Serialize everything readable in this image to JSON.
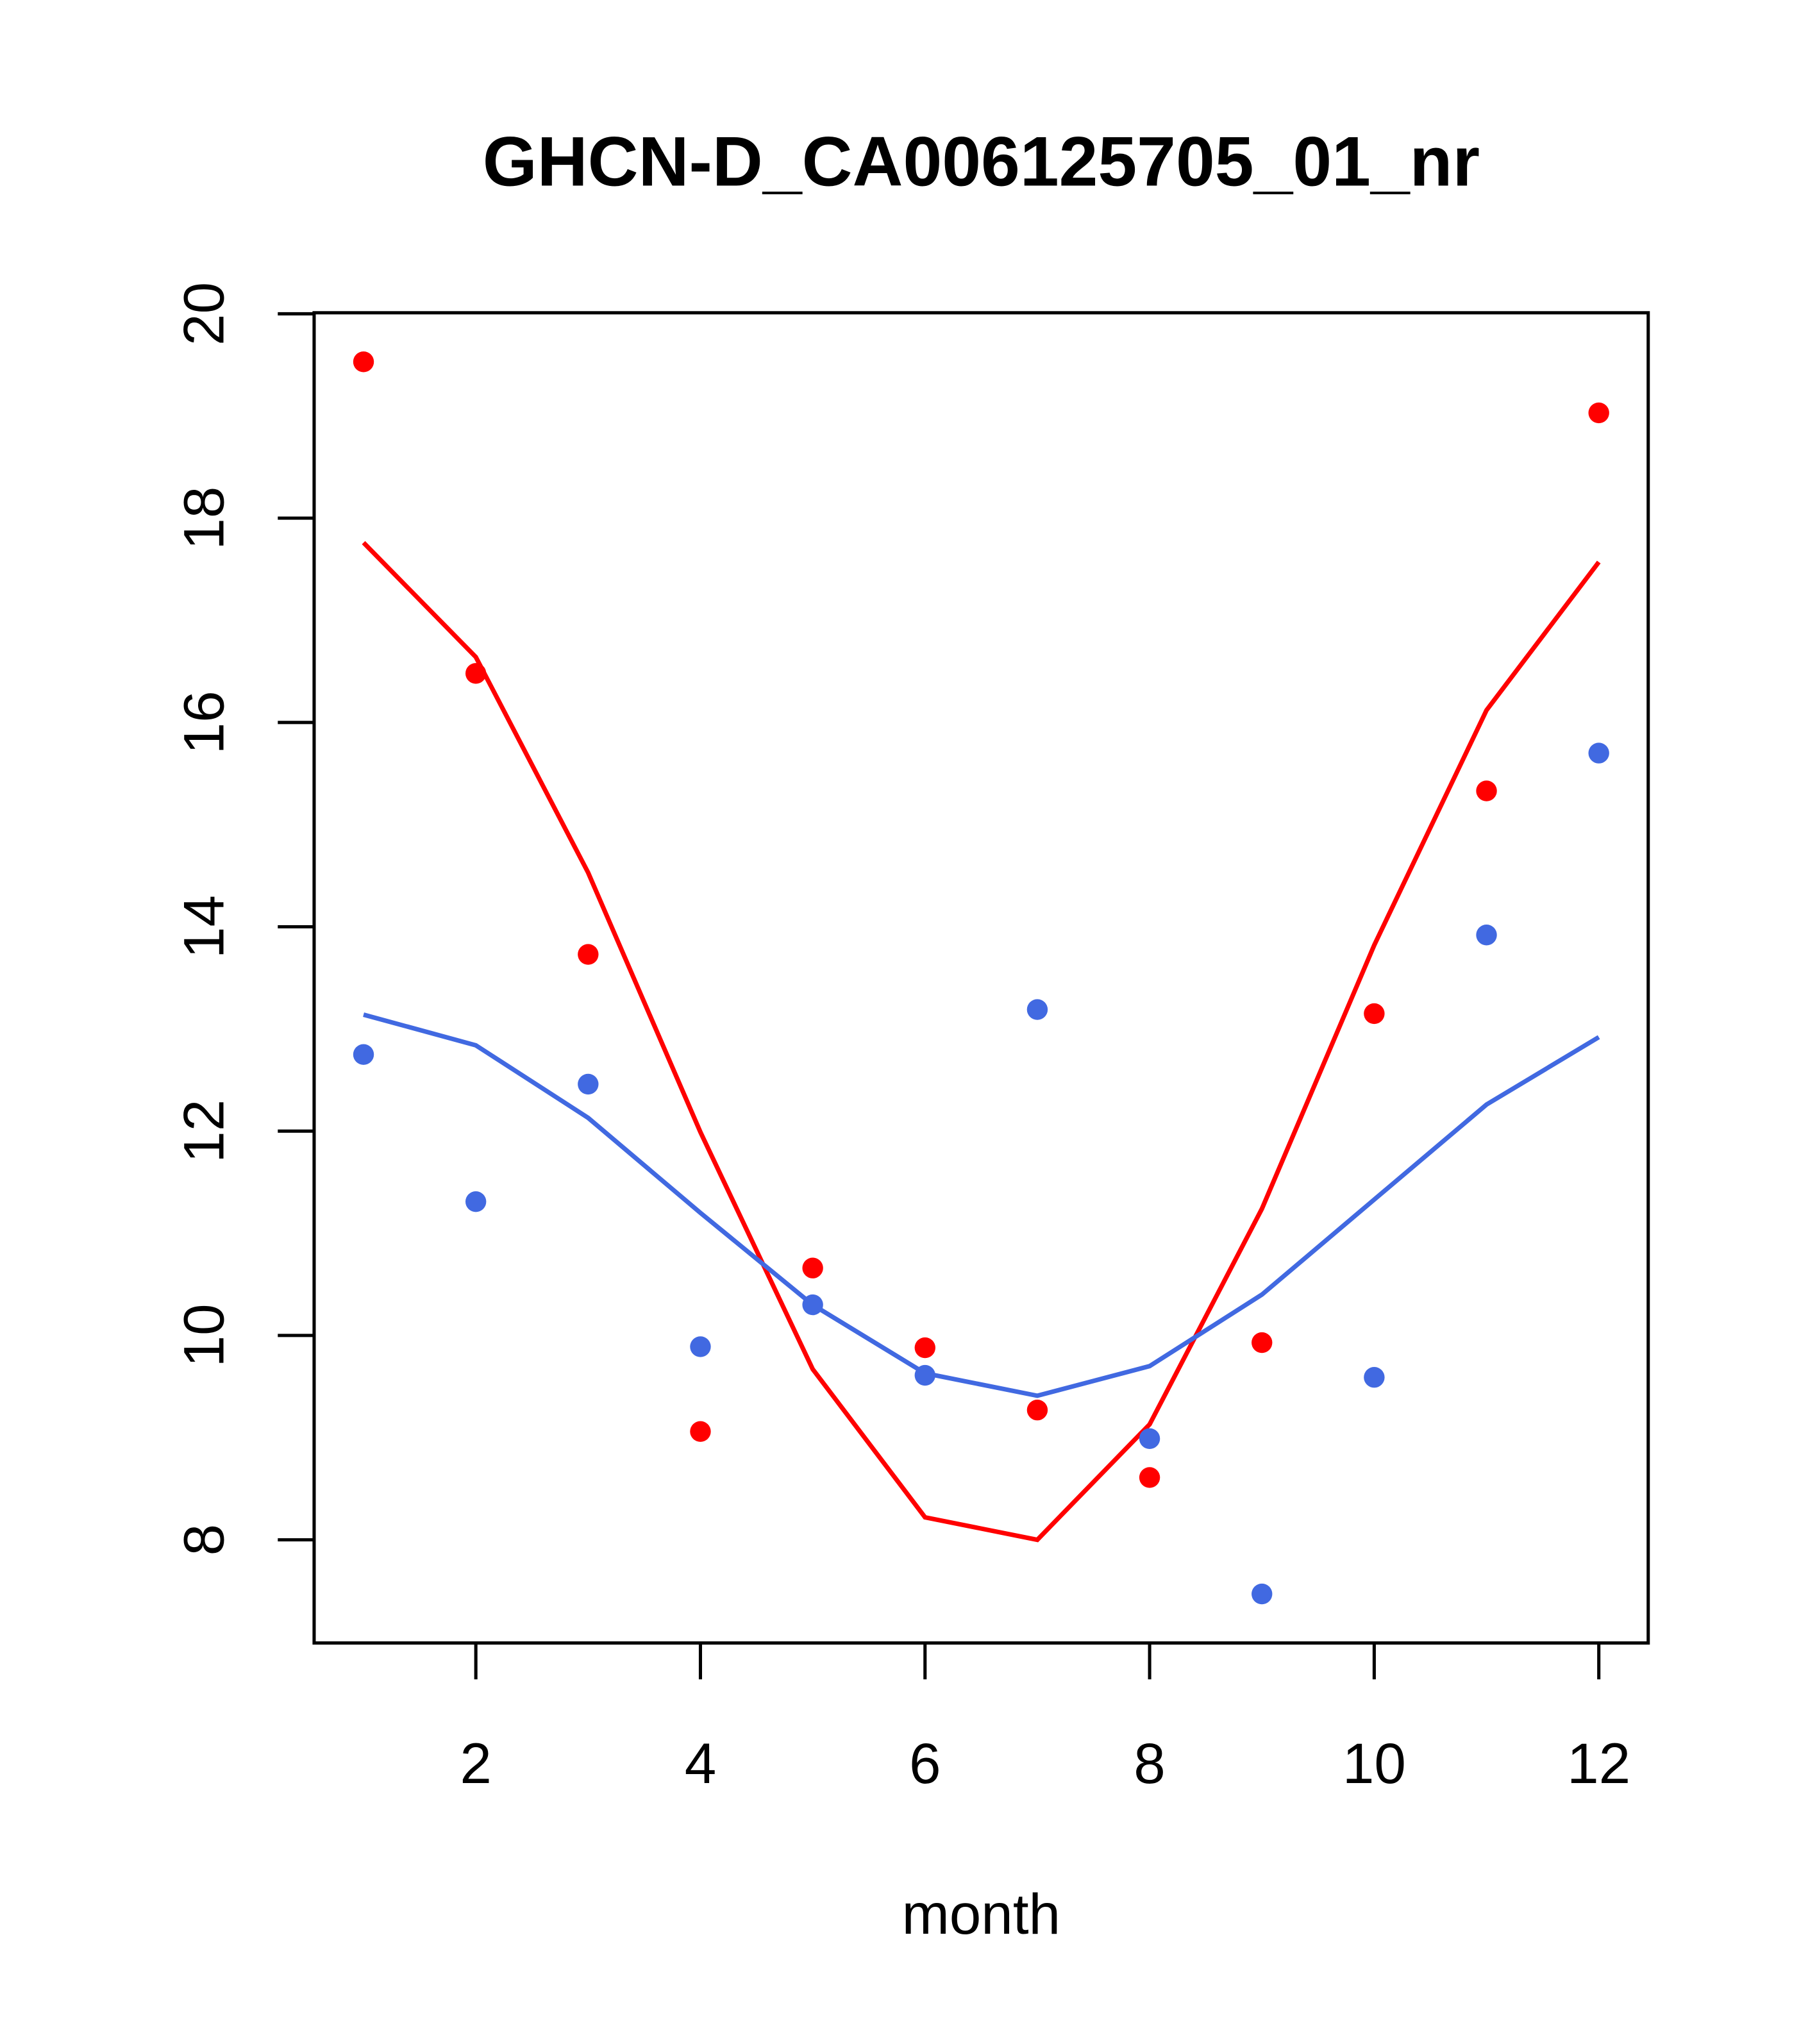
{
  "chart_data": {
    "type": "scatter",
    "title": "GHCN-D_CA006125705_01_nr",
    "xlabel": "month",
    "ylabel": "",
    "xlim": [
      0.56,
      12.44
    ],
    "ylim": [
      6.99,
      20.01
    ],
    "x_ticks": [
      2,
      4,
      6,
      8,
      10,
      12
    ],
    "y_ticks": [
      8,
      10,
      12,
      14,
      16,
      18,
      20
    ],
    "x_tick_labels": [
      "2",
      "4",
      "6",
      "8",
      "10",
      "12"
    ],
    "y_tick_labels": [
      "8",
      "10",
      "12",
      "14",
      "16",
      "18",
      "20"
    ],
    "grid": false,
    "x": [
      1,
      2,
      3,
      4,
      5,
      6,
      7,
      8,
      9,
      10,
      11,
      12
    ],
    "series": [
      {
        "name": "red points",
        "kind": "points",
        "color": "#ff0000",
        "values": [
          19.53,
          16.48,
          13.73,
          9.06,
          10.66,
          9.88,
          9.27,
          8.61,
          9.93,
          13.15,
          15.33,
          19.03
        ]
      },
      {
        "name": "blue points",
        "kind": "points",
        "color": "#4169e1",
        "values": [
          12.75,
          11.31,
          12.46,
          9.89,
          10.3,
          9.61,
          13.19,
          8.99,
          7.47,
          9.59,
          13.92,
          15.7
        ]
      },
      {
        "name": "red line",
        "kind": "line",
        "color": "#ff0000",
        "values": [
          17.76,
          16.64,
          14.53,
          11.99,
          9.67,
          8.22,
          8.0,
          9.13,
          11.24,
          13.82,
          16.12,
          17.57
        ]
      },
      {
        "name": "blue line",
        "kind": "line",
        "color": "#4169e1",
        "values": [
          13.14,
          12.84,
          12.13,
          11.2,
          10.3,
          9.63,
          9.41,
          9.7,
          10.4,
          11.33,
          12.26,
          12.92
        ]
      }
    ]
  }
}
